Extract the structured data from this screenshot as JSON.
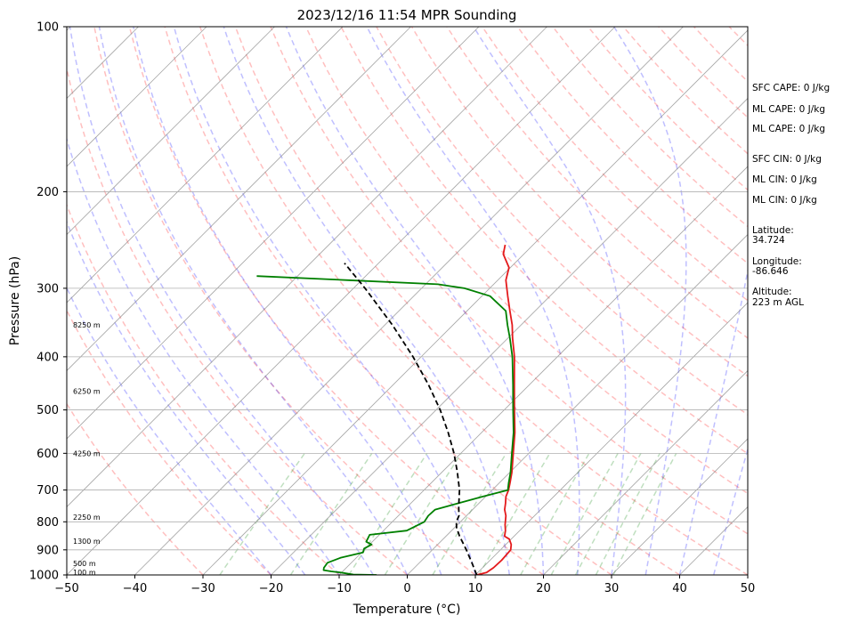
{
  "chart_data": {
    "type": "line",
    "title": "2023/12/16 11:54 MPR Sounding",
    "xlabel": "Temperature (°C)",
    "ylabel": "Pressure (hPa)",
    "xlim": [
      -50,
      50
    ],
    "ylim": [
      1000,
      100
    ],
    "y_scale": "log",
    "x_ticks": [
      -50,
      -40,
      -30,
      -20,
      -10,
      0,
      10,
      20,
      30,
      40,
      50
    ],
    "x_tick_labels": [
      "−50",
      "−40",
      "−30",
      "−20",
      "−10",
      "0",
      "10",
      "20",
      "30",
      "40",
      "50"
    ],
    "y_ticks": [
      1000,
      900,
      800,
      700,
      600,
      500,
      400,
      300,
      200,
      100
    ],
    "skew_degrees": 45,
    "grid": true,
    "series": [
      {
        "role": "temperature",
        "color": "#e41a1c",
        "points": [
          [
            1000,
            10.2
          ],
          [
            990,
            11.3
          ],
          [
            970,
            11.6
          ],
          [
            940,
            11.7
          ],
          [
            900,
            11.5
          ],
          [
            880,
            10.8
          ],
          [
            860,
            9.7
          ],
          [
            850,
            8.6
          ],
          [
            830,
            7.9
          ],
          [
            810,
            7.0
          ],
          [
            800,
            6.6
          ],
          [
            780,
            5.8
          ],
          [
            760,
            4.7
          ],
          [
            740,
            3.9
          ],
          [
            720,
            3.0
          ],
          [
            700,
            2.4
          ],
          [
            680,
            1.6
          ],
          [
            650,
            0.3
          ],
          [
            600,
            -2.3
          ],
          [
            550,
            -5.1
          ],
          [
            500,
            -8.5
          ],
          [
            450,
            -12.2
          ],
          [
            400,
            -16.3
          ],
          [
            370,
            -19.3
          ],
          [
            350,
            -21.3
          ],
          [
            330,
            -23.7
          ],
          [
            310,
            -26.2
          ],
          [
            290,
            -28.8
          ],
          [
            275,
            -30.2
          ],
          [
            260,
            -33.0
          ],
          [
            250,
            -34.1
          ]
        ]
      },
      {
        "role": "dewpoint",
        "color": "#008000",
        "points": [
          [
            1000,
            -4.5
          ],
          [
            998,
            -8.0
          ],
          [
            990,
            -10.1
          ],
          [
            985,
            -11.7
          ],
          [
            980,
            -13.0
          ],
          [
            970,
            -13.3
          ],
          [
            950,
            -13.5
          ],
          [
            930,
            -12.3
          ],
          [
            910,
            -9.8
          ],
          [
            895,
            -10.2
          ],
          [
            880,
            -9.7
          ],
          [
            870,
            -10.9
          ],
          [
            845,
            -11.4
          ],
          [
            830,
            -6.6
          ],
          [
            800,
            -5.3
          ],
          [
            780,
            -5.6
          ],
          [
            760,
            -5.5
          ],
          [
            740,
            -3.0
          ],
          [
            720,
            -0.5
          ],
          [
            700,
            2.3
          ],
          [
            680,
            1.4
          ],
          [
            650,
            0.1
          ],
          [
            600,
            -2.5
          ],
          [
            550,
            -5.3
          ],
          [
            500,
            -8.7
          ],
          [
            450,
            -12.4
          ],
          [
            400,
            -16.6
          ],
          [
            370,
            -19.7
          ],
          [
            350,
            -22.0
          ],
          [
            330,
            -24.3
          ],
          [
            310,
            -28.8
          ],
          [
            300,
            -33.7
          ],
          [
            295,
            -38.2
          ],
          [
            290,
            -52.0
          ],
          [
            285,
            -66.0
          ]
        ]
      },
      {
        "role": "parcel-profile",
        "color": "#000000",
        "style": "dashed",
        "points": [
          [
            1000,
            10.2
          ],
          [
            950,
            7.7
          ],
          [
            900,
            5.0
          ],
          [
            850,
            2.0
          ],
          [
            820,
            0.3
          ],
          [
            800,
            -0.6
          ],
          [
            780,
            -1.1
          ],
          [
            750,
            -2.5
          ],
          [
            700,
            -4.8
          ],
          [
            650,
            -7.7
          ],
          [
            600,
            -11.0
          ],
          [
            550,
            -14.9
          ],
          [
            500,
            -19.4
          ],
          [
            450,
            -24.8
          ],
          [
            400,
            -31.2
          ],
          [
            350,
            -38.9
          ],
          [
            300,
            -48.3
          ],
          [
            270,
            -55.0
          ]
        ]
      }
    ],
    "height_labels": [
      {
        "pressure": 350,
        "text": "8250 m"
      },
      {
        "pressure": 462,
        "text": "6250 m"
      },
      {
        "pressure": 600,
        "text": "4250 m"
      },
      {
        "pressure": 785,
        "text": "2250 m"
      },
      {
        "pressure": 868,
        "text": "1300 m"
      },
      {
        "pressure": 952,
        "text": "500 m"
      },
      {
        "pressure": 988,
        "text": "100 m"
      }
    ],
    "annotations": [
      "SFC CAPE: 0 J/kg",
      "ML CAPE: 0 J/kg",
      "ML CAPE: 0 J/kg",
      "SFC CIN: 0 J/kg",
      "ML CIN: 0 J/kg",
      "ML CIN: 0 J/kg",
      "Latitude:",
      "34.724",
      "Longitude:",
      "-86.646",
      "Altitude:",
      "223 m AGL"
    ],
    "background_lines": {
      "dry_adiabats": {
        "color": "#ff0000",
        "alpha": 0.25,
        "style": "dashed"
      },
      "moist_adiabats": {
        "color": "#0000ff",
        "alpha": 0.25,
        "style": "dashed"
      },
      "mixing_ratio": {
        "color": "#008000",
        "alpha": 0.25,
        "style": "dashed"
      },
      "isotherms": {
        "color": "#808080",
        "alpha": 0.7,
        "style": "solid"
      }
    }
  }
}
